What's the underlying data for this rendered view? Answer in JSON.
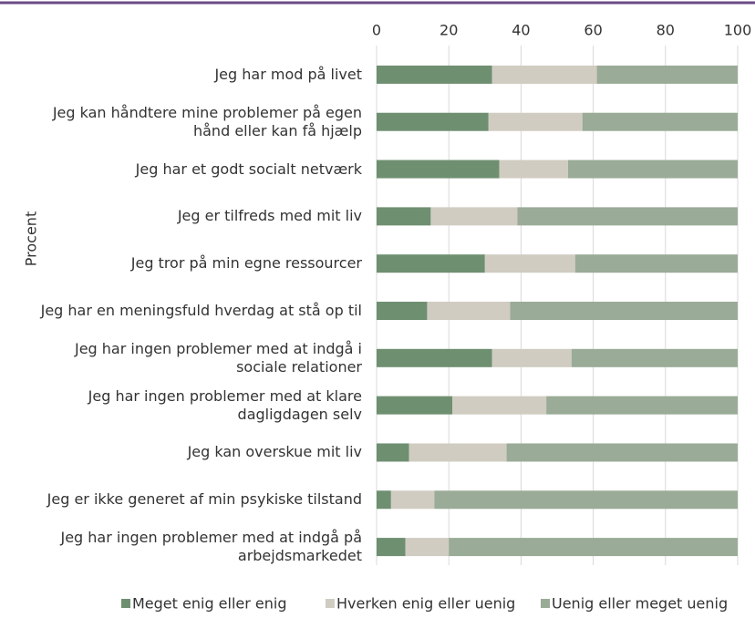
{
  "chart_data": {
    "type": "stacked_barh",
    "y_label": "Procent",
    "categories": [
      "Jeg har mod på livet",
      "Jeg kan håndtere mine problemer på egen\nhånd eller kan få hjælp",
      "Jeg har et godt socialt netværk",
      "Jeg er tilfreds med mit liv",
      "Jeg tror på min egne ressourcer",
      "Jeg har en meningsfuld hverdag at stå op til",
      "Jeg har ingen problemer med at indgå i\nsociale relationer",
      "Jeg har ingen problemer med at klare\ndagligdagen selv",
      "Jeg kan overskue mit liv",
      "Jeg er ikke generet af min psykiske tilstand",
      "Jeg har ingen problemer med at indgå på\narbejdsmarkedet"
    ],
    "series": [
      {
        "name": "Meget enig eller enig",
        "color": "#6f8f71",
        "values": [
          32,
          31,
          34,
          15,
          30,
          14,
          32,
          21,
          9,
          4,
          8
        ]
      },
      {
        "name": "Hverken enig eller uenig",
        "color": "#d0ccc2",
        "values": [
          29,
          26,
          19,
          24,
          25,
          23,
          22,
          26,
          27,
          12,
          12
        ]
      },
      {
        "name": "Uenig eller meget uenig",
        "color": "#9aab97",
        "values": [
          39,
          43,
          47,
          61,
          45,
          63,
          46,
          53,
          64,
          84,
          80
        ]
      }
    ],
    "xlim": [
      0,
      100
    ],
    "xticks": [
      0,
      20,
      40,
      60,
      80,
      100
    ],
    "grid": true,
    "legend": "bottom"
  }
}
